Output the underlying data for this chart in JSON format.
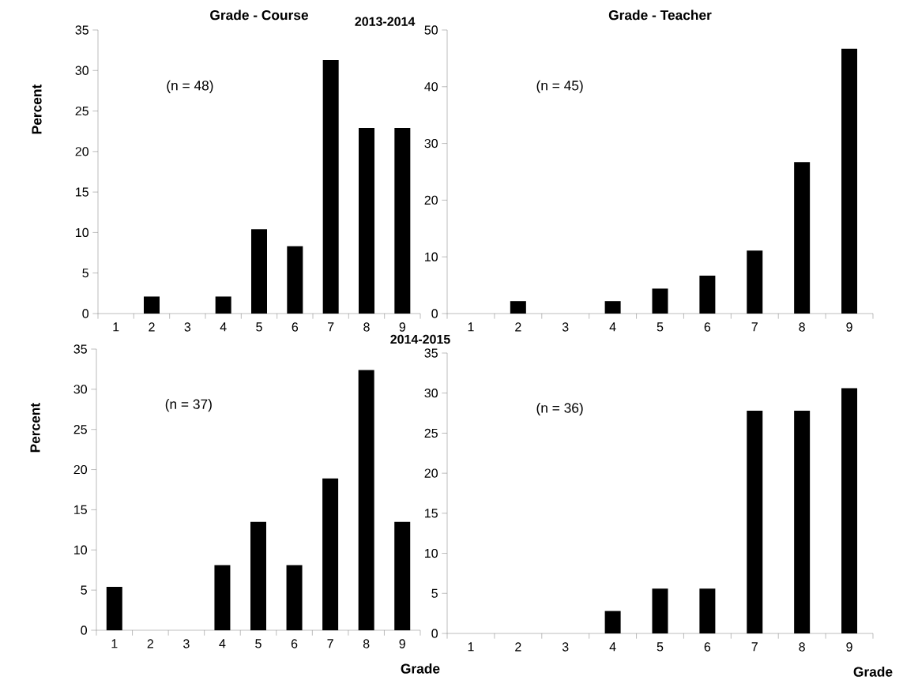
{
  "chart_data": [
    {
      "type": "bar",
      "title": "Grade - Course",
      "subtitle": "2013-2014",
      "ylabel": "Percent",
      "annotations": [
        "(n = 48)"
      ],
      "categories": [
        "1",
        "2",
        "3",
        "4",
        "5",
        "6",
        "7",
        "8",
        "9"
      ],
      "values": [
        0,
        2.1,
        0,
        2.1,
        10.4,
        8.3,
        31.3,
        22.9,
        22.9
      ],
      "color": "#000000",
      "ylim": [
        0,
        35
      ],
      "yticks": [
        0,
        5,
        10,
        15,
        20,
        25,
        30,
        35
      ]
    },
    {
      "type": "bar",
      "title": "Grade - Teacher",
      "annotations": [
        "(n = 45)"
      ],
      "categories": [
        "1",
        "2",
        "3",
        "4",
        "5",
        "6",
        "7",
        "8",
        "9"
      ],
      "values": [
        0,
        2.2,
        0,
        2.2,
        4.4,
        6.7,
        11.1,
        26.7,
        46.7
      ],
      "color": "#000000",
      "ylim": [
        0,
        50
      ],
      "yticks": [
        0,
        10,
        20,
        30,
        40,
        50
      ]
    },
    {
      "type": "bar",
      "subtitle": "2014-2015",
      "xlabel": "Grade",
      "ylabel": "Percent",
      "annotations": [
        "(n = 37)"
      ],
      "categories": [
        "1",
        "2",
        "3",
        "4",
        "5",
        "6",
        "7",
        "8",
        "9"
      ],
      "values": [
        5.4,
        0,
        0,
        8.1,
        13.5,
        8.1,
        18.9,
        32.4,
        13.5
      ],
      "color": "#000000",
      "ylim": [
        0,
        35
      ],
      "yticks": [
        0,
        5,
        10,
        15,
        20,
        25,
        30,
        35
      ]
    },
    {
      "type": "bar",
      "xlabel": "Grade",
      "annotations": [
        "(n = 36)"
      ],
      "categories": [
        "1",
        "2",
        "3",
        "4",
        "5",
        "6",
        "7",
        "8",
        "9"
      ],
      "values": [
        0,
        0,
        0,
        2.8,
        5.6,
        5.6,
        27.8,
        27.8,
        30.6
      ],
      "color": "#000000",
      "ylim": [
        0,
        35
      ],
      "yticks": [
        0,
        5,
        10,
        15,
        20,
        25,
        30,
        35
      ]
    }
  ]
}
